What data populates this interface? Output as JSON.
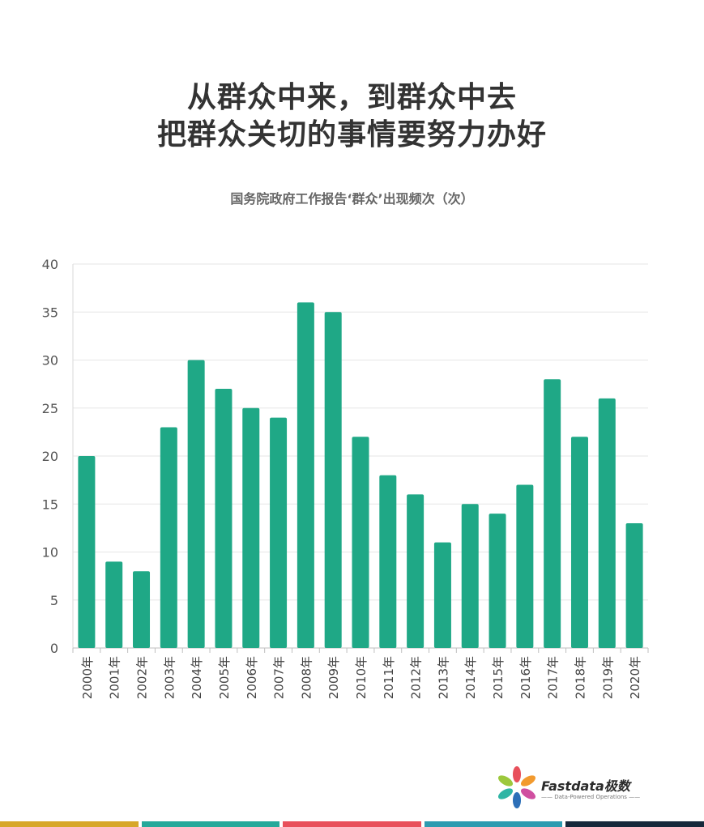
{
  "title_lines": [
    "从群众中来，到群众中去",
    "把群众关切的事情要努力办好"
  ],
  "brand": {
    "name": "Fastdata极数",
    "tagline": "—— Data-Powered Operations ——"
  },
  "colors": {
    "bar": "#1fa886",
    "title": "#333333",
    "subtitle": "#666666",
    "grid": "#e6e6e6",
    "stripes": [
      "#d7a72a",
      "#24a99a",
      "#e8505b",
      "#2c9bb0",
      "#16283b"
    ]
  },
  "chart_data": {
    "type": "bar",
    "title": "国务院政府工作报告‘群众’出现频次（次）",
    "xlabel": "",
    "ylabel": "",
    "ylim": [
      0,
      40
    ],
    "yticks": [
      0,
      5,
      10,
      15,
      20,
      25,
      30,
      35,
      40
    ],
    "grid": true,
    "categories": [
      "2000年",
      "2001年",
      "2002年",
      "2003年",
      "2004年",
      "2005年",
      "2006年",
      "2007年",
      "2008年",
      "2009年",
      "2010年",
      "2011年",
      "2012年",
      "2013年",
      "2014年",
      "2015年",
      "2016年",
      "2017年",
      "2018年",
      "2019年",
      "2020年"
    ],
    "values": [
      20,
      9,
      8,
      23,
      30,
      27,
      25,
      24,
      36,
      35,
      22,
      18,
      16,
      11,
      15,
      14,
      17,
      28,
      22,
      26,
      13
    ]
  }
}
